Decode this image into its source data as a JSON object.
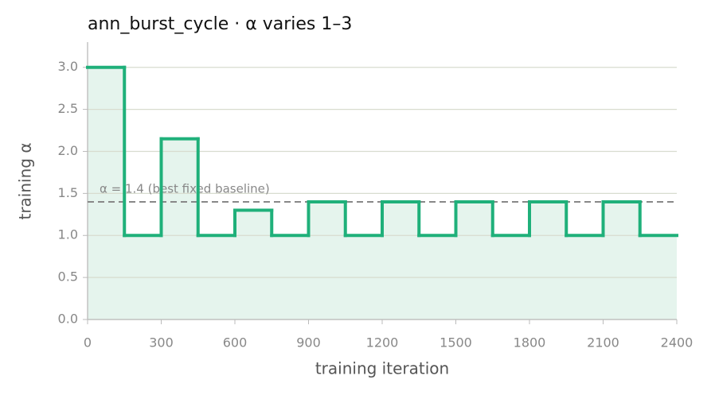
{
  "chart_data": {
    "type": "step",
    "title": "ann_burst_cycle   ·   α varies 1–3",
    "x_label": "training iteration",
    "y_label": "training α",
    "x": [
      0,
      150,
      300,
      450,
      600,
      750,
      900,
      1050,
      1200,
      1350,
      1500,
      1650,
      1800,
      1950,
      2100,
      2250
    ],
    "values": [
      3.0,
      1.0,
      2.15,
      1.0,
      1.3,
      1.0,
      1.4,
      1.0,
      1.4,
      1.0,
      1.4,
      1.0,
      1.4,
      1.0,
      1.4,
      1.0
    ],
    "color": "#1fb07a",
    "fill_color": "#e5f4ed",
    "xlim": [
      0,
      2400
    ],
    "xticks": [
      0,
      300,
      600,
      900,
      1200,
      1500,
      1800,
      2100,
      2400
    ],
    "ylim": [
      0,
      3.3
    ],
    "yticks": [
      {
        "value": 0,
        "label": "0.0"
      },
      0.5,
      {
        "value": 1,
        "label": "1.0"
      },
      1.5,
      {
        "value": 2,
        "label": "2.0"
      },
      2.5,
      {
        "value": 3,
        "label": "3.0"
      }
    ],
    "grid": true,
    "baseline": {
      "value": 1.4,
      "label": "α = 1.4 (best fixed baseline)",
      "color": "#888888"
    }
  }
}
